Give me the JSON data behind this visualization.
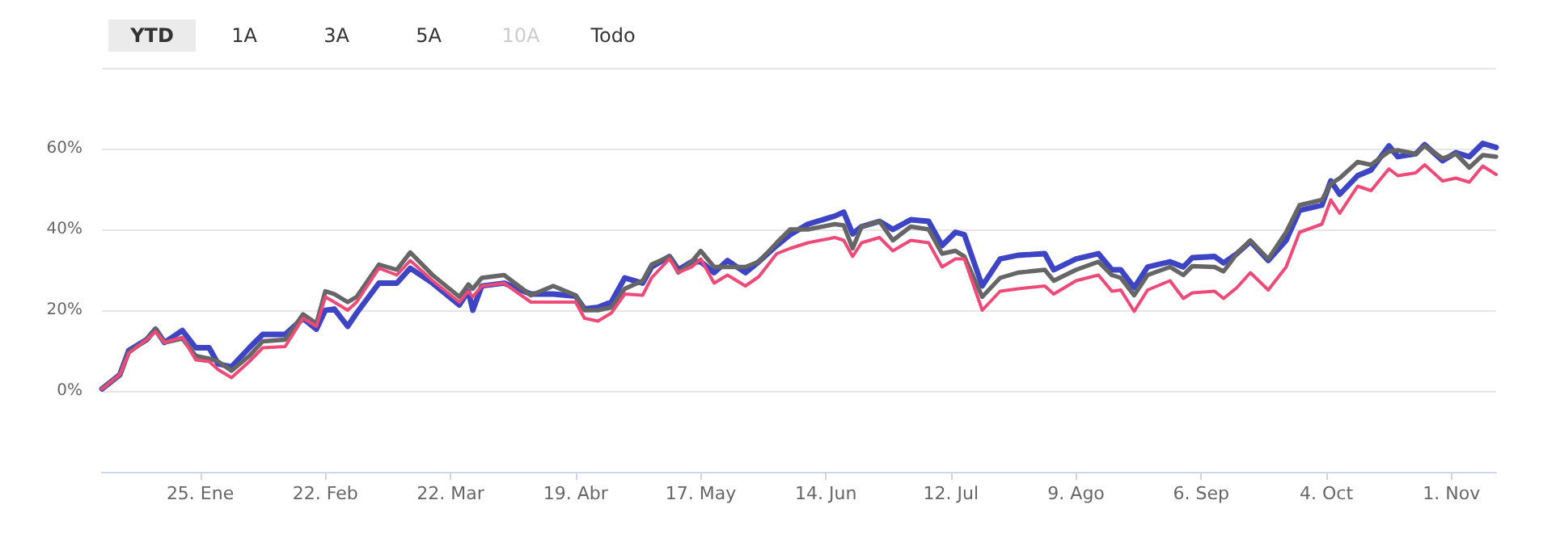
{
  "chart_data": {
    "type": "line",
    "annotations": [
      "YTD",
      "1A",
      "3A",
      "5A",
      "10A",
      "Todo"
    ],
    "x": [
      "--01-03",
      "--01-07",
      "--01-09",
      "--01-13",
      "--01-15",
      "--01-17",
      "--01-21",
      "--01-24",
      "--01-27",
      "--01-29",
      "--02-01",
      "--02-05",
      "--02-08",
      "--02-13",
      "--02-17",
      "--02-20",
      "--02-22",
      "--02-24",
      "--02-27",
      "--03-01",
      "--03-06",
      "--03-10",
      "--03-13",
      "--03-18",
      "--03-24",
      "--03-26",
      "--03-27",
      "--03-29",
      "--04-03",
      "--04-09",
      "--04-14",
      "--04-19",
      "--04-21",
      "--04-24",
      "--04-27",
      "--04-30",
      "--05-04",
      "--05-06",
      "--05-10",
      "--05-12",
      "--05-15",
      "--05-17",
      "--05-20",
      "--05-23",
      "--05-27",
      "--05-30",
      "--06-03",
      "--06-06",
      "--06-10",
      "--06-16",
      "--06-18",
      "--06-20",
      "--06-22",
      "--06-26",
      "--06-29",
      "--07-03",
      "--07-07",
      "--07-10",
      "--07-13",
      "--07-15",
      "--07-19",
      "--07-23",
      "--07-27",
      "--08-02",
      "--08-04",
      "--08-09",
      "--08-14",
      "--08-17",
      "--08-19",
      "--08-22",
      "--08-25",
      "--08-30",
      "--09-02",
      "--09-04",
      "--09-09",
      "--09-11",
      "--09-14",
      "--09-17",
      "--09-21",
      "--09-25",
      "--09-28",
      "--10-03",
      "--10-05",
      "--10-07",
      "--10-11",
      "--10-14",
      "--10-18",
      "--10-20",
      "--10-24",
      "--10-26",
      "--10-30",
      "--11-02",
      "--11-05",
      "--11-08",
      "--11-11"
    ],
    "series": [
      {
        "color": "#3d45c4",
        "values": [
          0.5,
          4,
          10,
          12.7,
          15.3,
          12,
          15,
          10.7,
          10.7,
          6.7,
          6,
          10.7,
          14,
          14,
          18,
          15.3,
          20,
          20.3,
          16,
          19.3,
          26.7,
          26.7,
          30.4,
          26.7,
          21.3,
          24.7,
          20,
          26,
          26.7,
          24,
          24,
          23.5,
          20.3,
          20.7,
          22,
          28,
          26.7,
          30.7,
          33.3,
          30,
          32,
          32,
          29.3,
          32.3,
          29.3,
          32,
          36,
          38.7,
          41.3,
          43.3,
          44.3,
          38.9,
          40.7,
          42,
          40,
          42.4,
          42,
          36,
          39.3,
          38.7,
          26,
          32.7,
          33.6,
          34,
          30,
          32.7,
          34,
          30,
          30,
          25.6,
          30.7,
          32,
          30.7,
          33,
          33.3,
          31.7,
          34,
          37,
          32.3,
          37.3,
          44.7,
          46,
          52,
          48.7,
          53.3,
          54.7,
          60.7,
          58,
          58.7,
          61,
          57,
          59,
          58,
          61.3,
          60.3
        ]
      },
      {
        "color": "#666666",
        "values": [
          0.5,
          4,
          9.6,
          12.7,
          15.3,
          12,
          13,
          8.7,
          8,
          7.3,
          5,
          8.7,
          12.3,
          12.7,
          19,
          16.7,
          24.7,
          24,
          22,
          23.3,
          31.3,
          30,
          34.3,
          28.7,
          23.3,
          26.4,
          25.3,
          28,
          28.7,
          23.7,
          26,
          23.7,
          20,
          20,
          20.7,
          25.3,
          27.3,
          31.3,
          33.3,
          29.3,
          32,
          34.7,
          30.7,
          30.7,
          30.7,
          32,
          36.7,
          40,
          40,
          41.3,
          41,
          35.3,
          40.7,
          42,
          37.3,
          40.7,
          40,
          34,
          34.7,
          33.3,
          23.3,
          28,
          29.3,
          30,
          27.3,
          30,
          32,
          28.7,
          28,
          23.7,
          28.7,
          30.7,
          28.7,
          30.9,
          30.7,
          29.6,
          34,
          37.3,
          32.7,
          39.3,
          46,
          47.3,
          51.3,
          52.7,
          56.7,
          56,
          59.3,
          59.6,
          58.7,
          60.7,
          57.6,
          58.7,
          55.3,
          58.4,
          58
        ]
      },
      {
        "color": "#ee4a78",
        "values": [
          0.5,
          4,
          9.3,
          12.7,
          14.7,
          12,
          13.3,
          7.7,
          7.3,
          5.3,
          3.3,
          7.3,
          10.7,
          11,
          18,
          16,
          23.3,
          22,
          20,
          22,
          30.4,
          28.7,
          32.3,
          27.3,
          22,
          24.7,
          23.3,
          26,
          26.7,
          22,
          22,
          22,
          18,
          17.3,
          19.3,
          24,
          23.7,
          28,
          32.7,
          29.3,
          30.7,
          32.7,
          26.7,
          28.7,
          26,
          28.3,
          34,
          35.3,
          36.7,
          38,
          37.3,
          33.3,
          36.7,
          38,
          34.7,
          37.3,
          36.7,
          30.7,
          32.7,
          32.7,
          20,
          24.7,
          25.3,
          26,
          24,
          27.3,
          28.7,
          24.7,
          25,
          19.7,
          25,
          27.3,
          22.9,
          24.3,
          24.7,
          22.9,
          25.6,
          29.3,
          25,
          30.7,
          39.3,
          41.3,
          47.3,
          44,
          50.7,
          49.6,
          55,
          53.3,
          54,
          56,
          52,
          52.7,
          51.7,
          55.7,
          53.6
        ]
      }
    ],
    "xlim": [
      "--01-03",
      "--11-11"
    ],
    "xticks": [
      {
        "value": "--01-25",
        "label": "25. Ene"
      },
      {
        "value": "--02-22",
        "label": "22. Feb"
      },
      {
        "value": "--03-22",
        "label": "22. Mar"
      },
      {
        "value": "--04-19",
        "label": "19. Abr"
      },
      {
        "value": "--05-17",
        "label": "17. May"
      },
      {
        "value": "--06-14",
        "label": "14. Jun"
      },
      {
        "value": "--07-12",
        "label": "12. Jul"
      },
      {
        "value": "--08-09",
        "label": "9. Ago"
      },
      {
        "value": "--09-06",
        "label": "6. Sep"
      },
      {
        "value": "--10-04",
        "label": "4. Oct"
      },
      {
        "value": "--11-01",
        "label": "1. Nov"
      }
    ],
    "ylim": [
      -20,
      80
    ],
    "yticks": [
      {
        "value": 0,
        "label": "0%"
      },
      {
        "value": 20,
        "label": "20%"
      },
      {
        "value": 40,
        "label": "40%"
      },
      {
        "value": 60,
        "label": "60%"
      },
      {
        "value": 80,
        "label": null
      }
    ],
    "grid": "y",
    "marker": "none",
    "line_style": "solid"
  }
}
